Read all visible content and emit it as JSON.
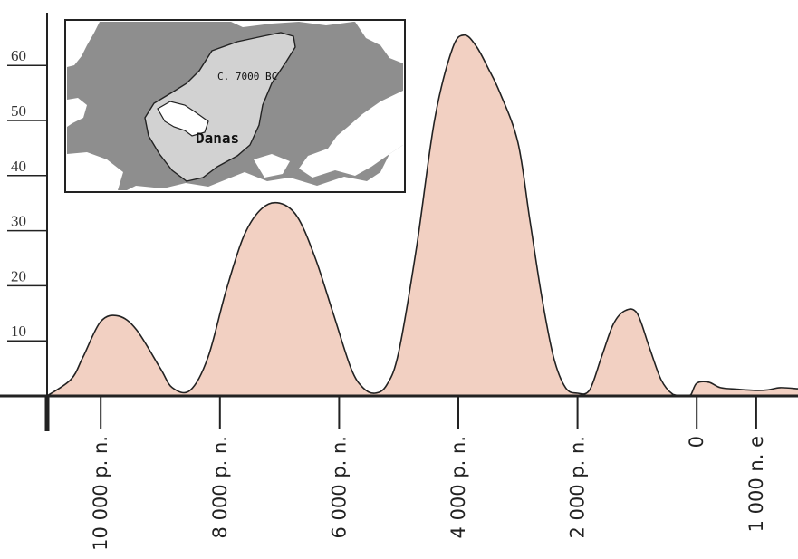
{
  "chart_data": {
    "type": "area",
    "title": "",
    "xlabel": "",
    "ylabel": "",
    "ylim": [
      0,
      70
    ],
    "yticks": [
      10,
      20,
      30,
      40,
      50,
      60
    ],
    "ytick_labels": [
      "10",
      "20",
      "30",
      "40",
      "50",
      "60"
    ],
    "xlim": [
      -10900,
      1700
    ],
    "xticks": [
      -10000,
      -8000,
      -6000,
      -4000,
      -2000,
      0,
      1000
    ],
    "xtick_labels": [
      "10 000 p. n.",
      "8 000 p. n.",
      "6 000 p. n.",
      "4 000 p. n.",
      "2 000 p. n.",
      "0",
      "1 000 n. e"
    ],
    "grid": false,
    "fill_color": "#f2d0c2",
    "line_color": "#222222",
    "series": [
      {
        "x": [
          -10900,
          -10500,
          -10300,
          -10000,
          -9700,
          -9400,
          -9000,
          -8800,
          -8500,
          -8200,
          -7900,
          -7600,
          -7300,
          -7000,
          -6700,
          -6400,
          -6100,
          -5800,
          -5600,
          -5400,
          -5200,
          -5000,
          -4700,
          -4400,
          -4100,
          -3900,
          -3700,
          -3500,
          -3300,
          -3000,
          -2800,
          -2600,
          -2400,
          -2200,
          -2000,
          -1800,
          -1600,
          -1400,
          -1200,
          -1000,
          -800,
          -600,
          -400,
          -200,
          -100,
          0,
          200,
          400,
          700,
          1000,
          1200,
          1400,
          1700
        ],
        "y": [
          0,
          3,
          7,
          13.5,
          14.5,
          12,
          5,
          1.5,
          1,
          7,
          19,
          29,
          34,
          35,
          32.5,
          25,
          15,
          5,
          1.5,
          0.5,
          2,
          8,
          27,
          50,
          63,
          65.5,
          63.5,
          59.5,
          55,
          46,
          32,
          18,
          7,
          1.5,
          0.5,
          1,
          7,
          13,
          15.5,
          15,
          9,
          3,
          0.3,
          0,
          0.2,
          2.3,
          2.5,
          1.5,
          1.2,
          1.0,
          1.1,
          1.5,
          1.3
        ]
      }
    ]
  },
  "inset": {
    "label_date": "C. 7000 BC",
    "label_place": "Danas"
  }
}
